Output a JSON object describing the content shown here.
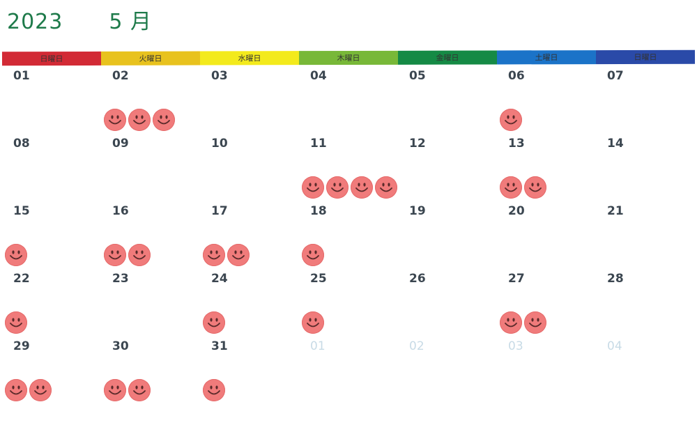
{
  "header": {
    "year": "2023",
    "month": "5 月"
  },
  "weekdays": [
    {
      "label": "日曜日",
      "color": "#d22a35"
    },
    {
      "label": "火曜日",
      "color": "#e8c21e"
    },
    {
      "label": "水曜日",
      "color": "#f3ea1c"
    },
    {
      "label": "木曜日",
      "color": "#78b838"
    },
    {
      "label": "金曜日",
      "color": "#158a45"
    },
    {
      "label": "土曜日",
      "color": "#1b73c8"
    },
    {
      "label": "日曜日",
      "color": "#2a4aa8"
    }
  ],
  "smiley_color": "#f07b7b",
  "weeks": [
    [
      {
        "day": "01",
        "smileys": 0
      },
      {
        "day": "02",
        "smileys": 3
      },
      {
        "day": "03",
        "smileys": 0
      },
      {
        "day": "04",
        "smileys": 0
      },
      {
        "day": "05",
        "smileys": 0
      },
      {
        "day": "06",
        "smileys": 1
      },
      {
        "day": "07",
        "smileys": 0
      }
    ],
    [
      {
        "day": "08",
        "smileys": 0
      },
      {
        "day": "09",
        "smileys": 0
      },
      {
        "day": "10",
        "smileys": 0
      },
      {
        "day": "11",
        "smileys": 4
      },
      {
        "day": "12",
        "smileys": 0
      },
      {
        "day": "13",
        "smileys": 2
      },
      {
        "day": "14",
        "smileys": 0
      }
    ],
    [
      {
        "day": "15",
        "smileys": 1
      },
      {
        "day": "16",
        "smileys": 2
      },
      {
        "day": "17",
        "smileys": 2
      },
      {
        "day": "18",
        "smileys": 1
      },
      {
        "day": "19",
        "smileys": 0
      },
      {
        "day": "20",
        "smileys": 0
      },
      {
        "day": "21",
        "smileys": 0
      }
    ],
    [
      {
        "day": "22",
        "smileys": 1
      },
      {
        "day": "23",
        "smileys": 0
      },
      {
        "day": "24",
        "smileys": 1
      },
      {
        "day": "25",
        "smileys": 1
      },
      {
        "day": "26",
        "smileys": 0
      },
      {
        "day": "27",
        "smileys": 2
      },
      {
        "day": "28",
        "smileys": 0
      }
    ],
    [
      {
        "day": "29",
        "smileys": 2
      },
      {
        "day": "30",
        "smileys": 2
      },
      {
        "day": "31",
        "smileys": 1
      },
      {
        "day": "01",
        "smileys": 0,
        "muted": true
      },
      {
        "day": "02",
        "smileys": 0,
        "muted": true
      },
      {
        "day": "03",
        "smileys": 0,
        "muted": true
      },
      {
        "day": "04",
        "smileys": 0,
        "muted": true
      }
    ]
  ]
}
